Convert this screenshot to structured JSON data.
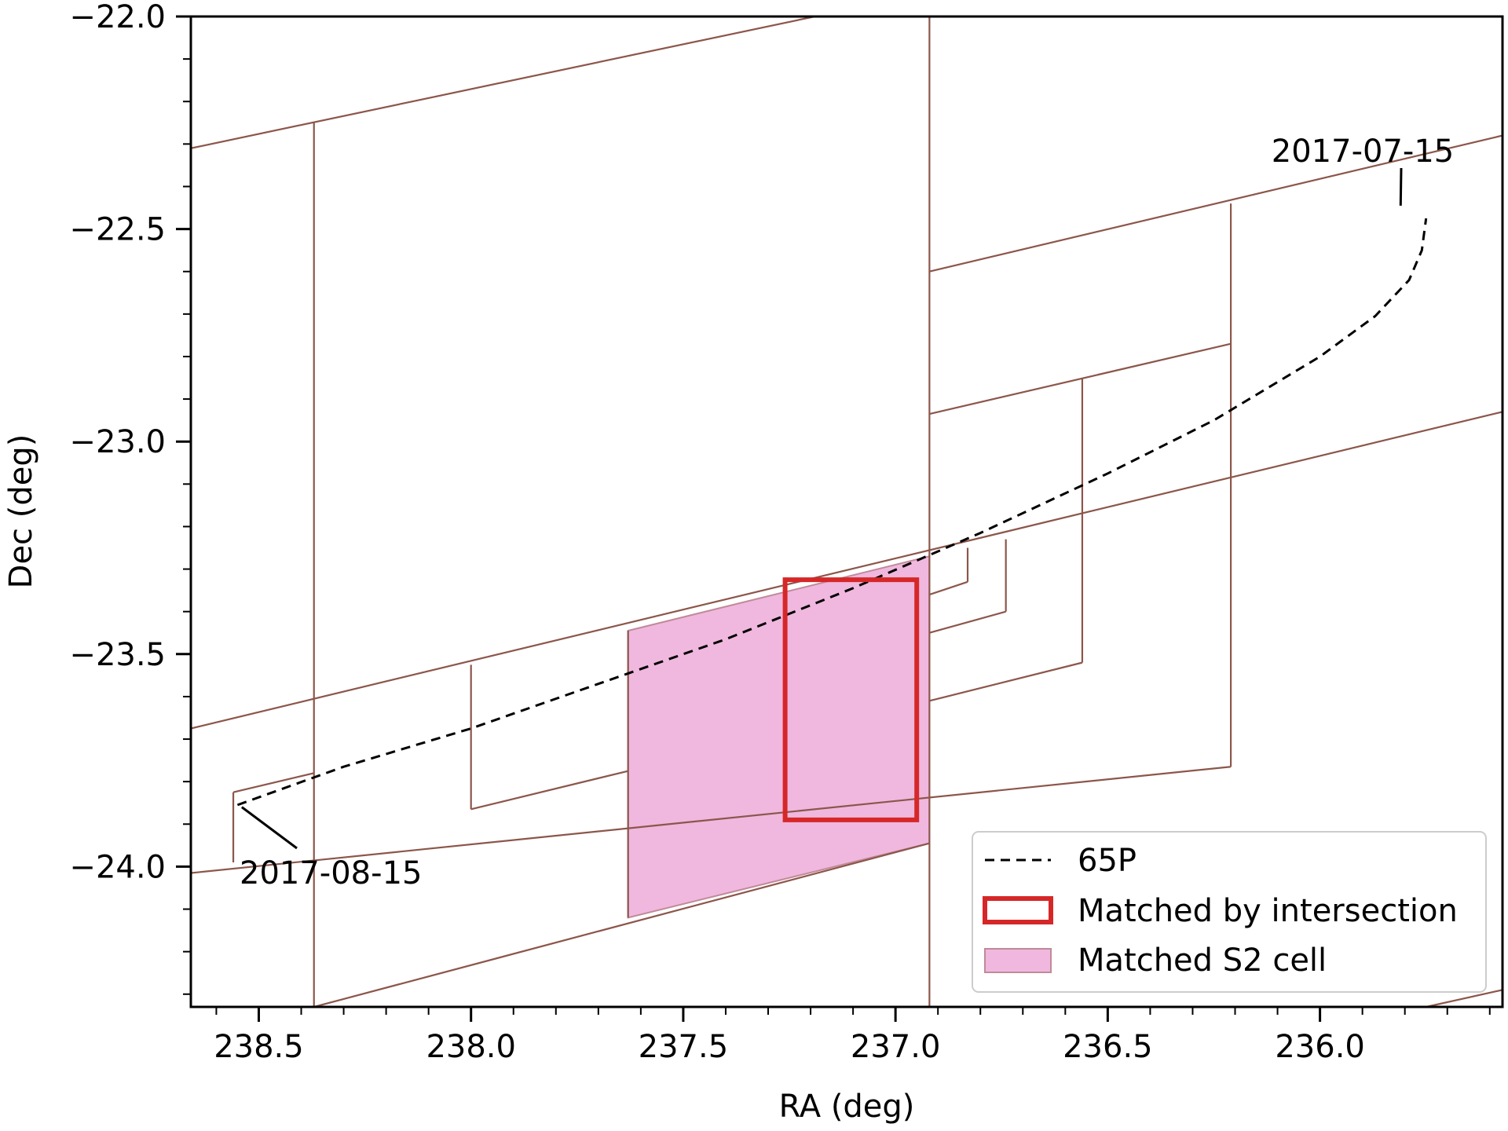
{
  "chart_data": {
    "type": "line",
    "title": "",
    "xlabel": "RA (deg)",
    "ylabel": "Dec (deg)",
    "xlim": [
      238.66,
      235.57
    ],
    "ylim": [
      -24.33,
      -22.0
    ],
    "x_inverted": true,
    "grid": false,
    "xticks": [
      238.5,
      238.0,
      237.5,
      237.0,
      236.5,
      236.0
    ],
    "xtick_labels": [
      "238.5",
      "238.0",
      "237.5",
      "237.0",
      "236.5",
      "236.0"
    ],
    "yticks": [
      -22.0,
      -22.5,
      -23.0,
      -23.5,
      -24.0
    ],
    "ytick_labels": [
      "−22.0",
      "−22.5",
      "−23.0",
      "−23.5",
      "−24.0"
    ],
    "series": [
      {
        "name": "65P",
        "style": "dashed",
        "color": "#000000",
        "points": [
          [
            238.55,
            -23.855
          ],
          [
            238.3,
            -23.765
          ],
          [
            238.0,
            -23.675
          ],
          [
            237.7,
            -23.57
          ],
          [
            237.4,
            -23.465
          ],
          [
            237.1,
            -23.345
          ],
          [
            236.8,
            -23.215
          ],
          [
            236.5,
            -23.075
          ],
          [
            236.25,
            -22.95
          ],
          [
            236.0,
            -22.8
          ],
          [
            235.87,
            -22.705
          ],
          [
            235.79,
            -22.62
          ],
          [
            235.76,
            -22.55
          ],
          [
            235.75,
            -22.475
          ]
        ]
      }
    ],
    "matched_s2_cell": {
      "name": "Matched S2 cell",
      "fill": "#f0b8de",
      "edge": "#c08a98",
      "polygon": [
        [
          237.63,
          -23.445
        ],
        [
          236.92,
          -23.27
        ],
        [
          236.92,
          -23.945
        ],
        [
          237.63,
          -24.12
        ]
      ]
    },
    "matched_by_intersection": {
      "name": "Matched by intersection",
      "edge": "#d62728",
      "polygon": [
        [
          237.26,
          -23.325
        ],
        [
          236.95,
          -23.325
        ],
        [
          236.95,
          -23.89
        ],
        [
          237.26,
          -23.89
        ]
      ]
    },
    "cell_grid_color": "#8c564b",
    "cell_grid_lines": [
      [
        [
          238.66,
          -22.31
        ],
        [
          237.19,
          -22.0
        ]
      ],
      [
        [
          238.66,
          -23.675
        ],
        [
          235.57,
          -22.93
        ]
      ],
      [
        [
          238.66,
          -24.015
        ],
        [
          236.21,
          -23.765
        ]
      ],
      [
        [
          238.37,
          -24.33
        ],
        [
          236.92,
          -23.945
        ]
      ],
      [
        [
          236.92,
          -22.6
        ],
        [
          235.57,
          -22.28
        ]
      ],
      [
        [
          236.92,
          -22.935
        ],
        [
          236.21,
          -22.77
        ]
      ],
      [
        [
          236.92,
          -23.36
        ],
        [
          236.83,
          -23.33
        ]
      ],
      [
        [
          236.92,
          -23.45
        ],
        [
          236.74,
          -23.4
        ]
      ],
      [
        [
          236.92,
          -23.61
        ],
        [
          236.56,
          -23.52
        ]
      ],
      [
        [
          238.56,
          -23.825
        ],
        [
          238.37,
          -23.78
        ]
      ],
      [
        [
          238.0,
          -23.865
        ],
        [
          237.63,
          -23.775
        ]
      ],
      [
        [
          235.75,
          -24.33
        ],
        [
          235.57,
          -24.29
        ]
      ],
      [
        [
          238.37,
          -22.25
        ],
        [
          238.37,
          -24.33
        ]
      ],
      [
        [
          236.92,
          -22.0
        ],
        [
          236.92,
          -24.33
        ]
      ],
      [
        [
          238.0,
          -23.525
        ],
        [
          238.0,
          -23.865
        ]
      ],
      [
        [
          237.63,
          -23.445
        ],
        [
          237.63,
          -24.12
        ]
      ],
      [
        [
          236.21,
          -22.44
        ],
        [
          236.21,
          -23.765
        ]
      ],
      [
        [
          236.56,
          -22.85
        ],
        [
          236.56,
          -23.52
        ]
      ],
      [
        [
          236.74,
          -23.23
        ],
        [
          236.74,
          -23.4
        ]
      ],
      [
        [
          236.83,
          -23.25
        ],
        [
          236.83,
          -23.33
        ]
      ],
      [
        [
          238.56,
          -23.825
        ],
        [
          238.56,
          -23.99
        ]
      ]
    ],
    "annotations": [
      {
        "text": "2017-07-15",
        "anchor": [
          235.81,
          -22.445
        ],
        "label_at": [
          236.12,
          -22.31
        ]
      },
      {
        "text": "2017-08-15",
        "anchor": [
          238.54,
          -23.86
        ],
        "label_at": [
          238.35,
          -24.0
        ]
      }
    ],
    "legend": {
      "placement": "lower-right",
      "entries": [
        "65P",
        "Matched by intersection",
        "Matched S2 cell"
      ]
    }
  }
}
